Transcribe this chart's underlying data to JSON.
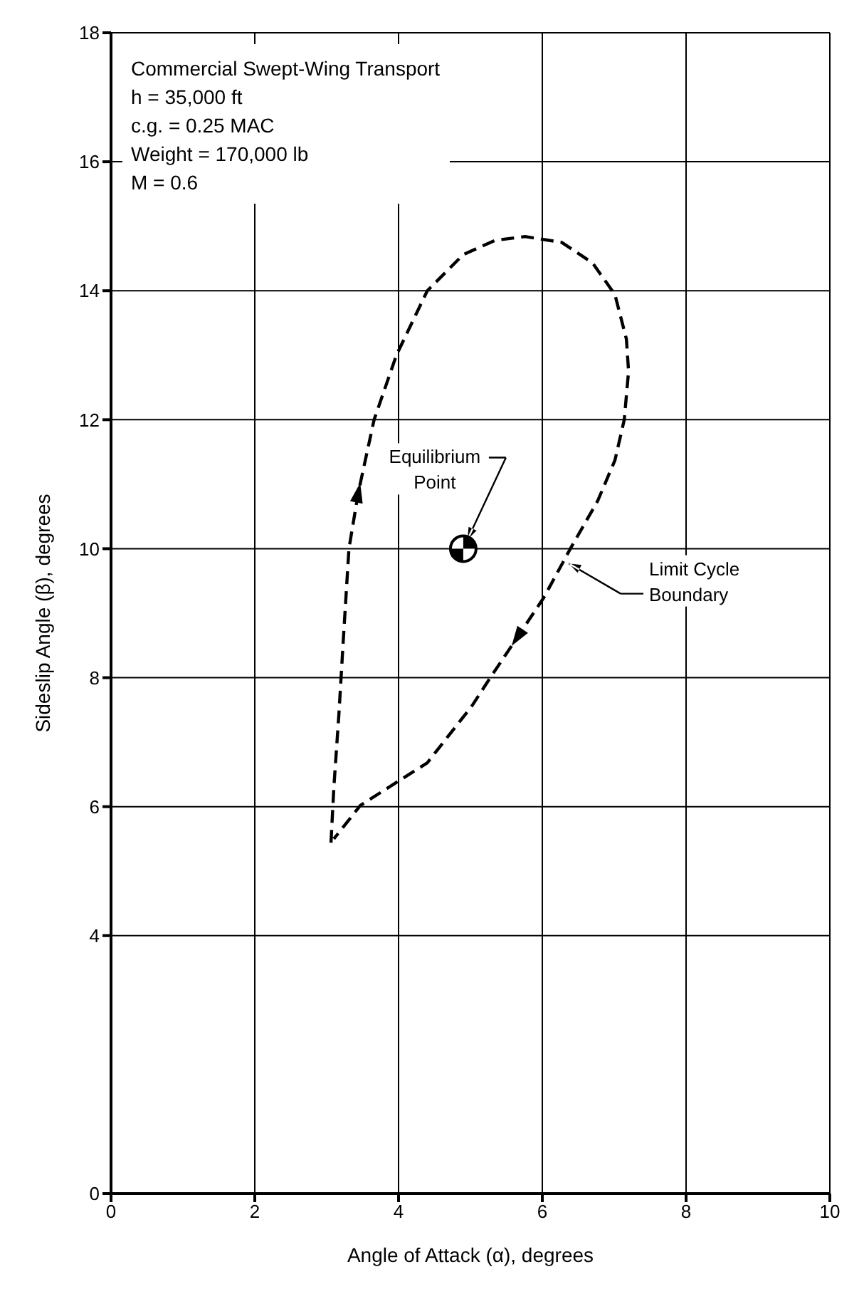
{
  "chart_data": {
    "type": "line",
    "xlabel": "Angle of Attack (α), degrees",
    "ylabel": "Sideslip Angle (β), degrees",
    "xlim": [
      0,
      10
    ],
    "xticks": [
      0,
      2,
      4,
      6,
      8,
      10
    ],
    "ylim": [
      0,
      18
    ],
    "yticks": [
      0,
      4,
      6,
      8,
      10,
      12,
      14,
      16,
      18
    ],
    "grid": true,
    "series": [
      {
        "color": "#000000",
        "line_style": "dashed",
        "marker": "none",
        "x": [
          3.06,
          3.1,
          3.17,
          3.23,
          3.31,
          3.44,
          3.66,
          3.97,
          4.4,
          4.9,
          5.34,
          5.76,
          6.27,
          6.7,
          7.01,
          7.17,
          7.2,
          7.14,
          7.01,
          6.77,
          6.39,
          6.02,
          5.65,
          5.27,
          5.02,
          4.4,
          3.47,
          3.1
        ],
        "values": [
          5.44,
          6.3,
          7.43,
          8.56,
          10.0,
          10.87,
          12.0,
          13.0,
          14.0,
          14.56,
          14.78,
          14.84,
          14.75,
          14.43,
          13.94,
          13.25,
          12.75,
          12.0,
          11.37,
          10.74,
          10.0,
          9.24,
          8.62,
          7.99,
          7.56,
          6.68,
          6.02,
          5.5
        ]
      },
      {
        "type": "scatter",
        "color": "#000000",
        "marker": "circle",
        "x": [
          4.9
        ],
        "values": [
          10
        ]
      }
    ],
    "annotations": [
      "Commercial Swept-Wing Transport",
      "h = 35,000 ft",
      "c.g. = 0.25 MAC",
      "Weight = 170,000 lb",
      "M = 0.6",
      {
        "text": "Equilibrium Point",
        "x": 4.9,
        "y": 10
      },
      "Limit Cycle Boundary"
    ]
  }
}
